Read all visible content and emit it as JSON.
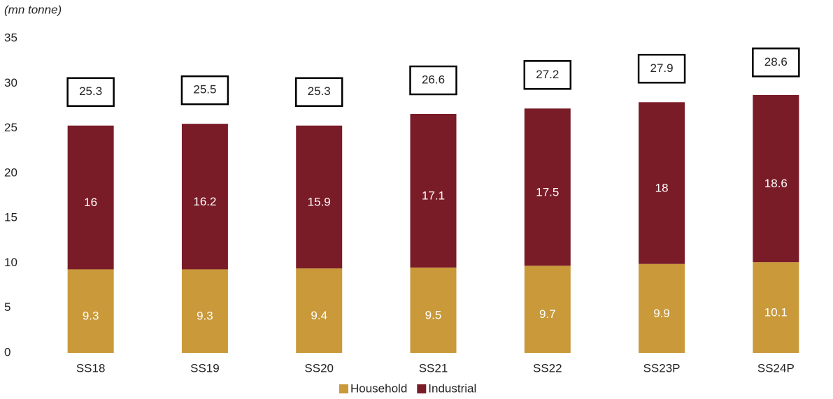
{
  "chart_data": {
    "type": "stacked_bar",
    "axis_label": "(mn tonne)",
    "categories": [
      "SS18",
      "SS19",
      "SS20",
      "SS21",
      "SS22",
      "SS23P",
      "SS24P"
    ],
    "series": [
      {
        "name": "Household",
        "color": "#c9993a",
        "values": [
          9.3,
          9.3,
          9.4,
          9.5,
          9.7,
          9.9,
          10.1
        ]
      },
      {
        "name": "Industrial",
        "color": "#7a1c28",
        "values": [
          16,
          16.2,
          15.9,
          17.1,
          17.5,
          18,
          18.6
        ]
      }
    ],
    "totals": [
      25.3,
      25.5,
      25.3,
      26.6,
      27.2,
      27.9,
      28.6
    ],
    "ylim": [
      0,
      35
    ],
    "yticks": [
      0,
      5,
      10,
      15,
      20,
      25,
      30,
      35
    ],
    "legend": "bottom"
  }
}
